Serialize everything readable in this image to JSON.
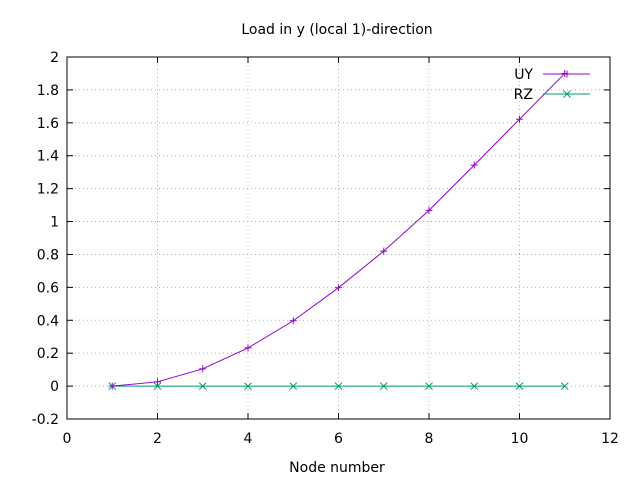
{
  "chart_data": {
    "type": "line",
    "title": "Load in y (local 1)-direction",
    "xlabel": "Node number",
    "ylabel": "",
    "xlim": [
      0,
      12
    ],
    "ylim": [
      -0.2,
      2
    ],
    "xticks": [
      0,
      2,
      4,
      6,
      8,
      10,
      12
    ],
    "yticks": [
      -0.2,
      0,
      0.2,
      0.4,
      0.6,
      0.8,
      1,
      1.2,
      1.4,
      1.6,
      1.8,
      2
    ],
    "ytick_labels": [
      "-0.2",
      "0",
      "0.2",
      "0.4",
      "0.6",
      "0.8",
      "1",
      "1.2",
      "1.4",
      "1.6",
      "1.8",
      "2"
    ],
    "grid": true,
    "legend_position": "top-right",
    "x": [
      1,
      2,
      3,
      4,
      5,
      6,
      7,
      8,
      9,
      10,
      11
    ],
    "series": [
      {
        "name": "UY",
        "color": "#9400d3",
        "marker": "plus",
        "values": [
          0,
          0.026,
          0.105,
          0.232,
          0.397,
          0.598,
          0.82,
          1.068,
          1.343,
          1.622,
          1.9
        ]
      },
      {
        "name": "RZ",
        "color": "#009e73",
        "marker": "cross",
        "values": [
          0,
          0,
          0,
          0,
          0,
          0,
          0,
          0,
          0,
          0,
          0
        ]
      }
    ]
  }
}
